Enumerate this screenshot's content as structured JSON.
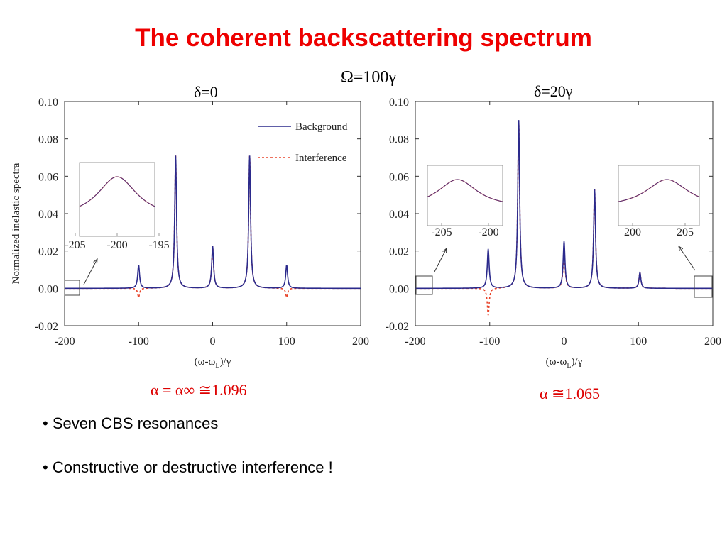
{
  "title": "The coherent backscattering spectrum",
  "omega_label": "Ω=100γ",
  "bullets": [
    "• Seven CBS resonances",
    "• Constructive or destructive interference !"
  ],
  "colors": {
    "title": "#ee0000",
    "background": "#2b2a8c",
    "interference": "#e8442a",
    "alpha": "#dd0000"
  },
  "chart_data": [
    {
      "type": "line",
      "panel_label": "δ=0",
      "alpha_label": "α = α∞ ≅1.096",
      "xlabel": "(ω-ωL)/γ",
      "ylabel": "Normalized inelastic spectra",
      "xlim": [
        -200,
        200
      ],
      "ylim": [
        -0.02,
        0.1
      ],
      "xticks": [
        -200,
        -100,
        0,
        100,
        200
      ],
      "yticks": [
        -0.02,
        0.0,
        0.02,
        0.04,
        0.06,
        0.08,
        0.1
      ],
      "ytick_labels": [
        "-0.02",
        "0.00",
        "0.02",
        "0.04",
        "0.06",
        "0.08",
        "0.10"
      ],
      "legend": [
        "Background",
        "Interference"
      ],
      "legend_position": "top-right",
      "background_peaks": [
        {
          "x": -100,
          "y": 0.0125,
          "w": 1.5
        },
        {
          "x": -50,
          "y": 0.071,
          "w": 1.5
        },
        {
          "x": 0,
          "y": 0.0225,
          "w": 1.5
        },
        {
          "x": 50,
          "y": 0.071,
          "w": 1.5
        },
        {
          "x": 100,
          "y": 0.0125,
          "w": 1.5
        }
      ],
      "interference_peaks": [
        {
          "x": -100,
          "y": -0.005,
          "w": 1.5
        },
        {
          "x": -50,
          "y": 0.071,
          "w": 1.5
        },
        {
          "x": 0,
          "y": 0.0225,
          "w": 1.5
        },
        {
          "x": 50,
          "y": 0.071,
          "w": 1.5
        },
        {
          "x": 100,
          "y": -0.005,
          "w": 1.5
        }
      ],
      "insets": [
        {
          "xticks": [
            "-205",
            "-200",
            "-195"
          ],
          "zoom_x": [
            -205,
            -195
          ],
          "peak_x": -200
        }
      ]
    },
    {
      "type": "line",
      "panel_label": "δ=20γ",
      "alpha_label": "α ≅1.065",
      "xlabel": "(ω-ωL)/γ",
      "ylabel": "",
      "xlim": [
        -200,
        200
      ],
      "ylim": [
        -0.02,
        0.1
      ],
      "xticks": [
        -200,
        -100,
        0,
        100,
        200
      ],
      "yticks": [
        -0.02,
        0.0,
        0.02,
        0.04,
        0.06,
        0.08,
        0.1
      ],
      "ytick_labels": [
        "-0.02",
        "0.00",
        "0.02",
        "0.04",
        "0.06",
        "0.08",
        "0.10"
      ],
      "background_peaks": [
        {
          "x": -102,
          "y": 0.021,
          "w": 1.5
        },
        {
          "x": -61,
          "y": 0.09,
          "w": 1.5
        },
        {
          "x": 0,
          "y": 0.025,
          "w": 1.5
        },
        {
          "x": 41,
          "y": 0.053,
          "w": 1.5
        },
        {
          "x": 102,
          "y": 0.0085,
          "w": 1.5
        }
      ],
      "interference_peaks": [
        {
          "x": -102,
          "y": -0.0145,
          "w": 1.5
        },
        {
          "x": -61,
          "y": 0.09,
          "w": 1.5
        },
        {
          "x": 0,
          "y": 0.021,
          "w": 1.5
        },
        {
          "x": 41,
          "y": 0.053,
          "w": 1.5
        },
        {
          "x": 102,
          "y": 0.0085,
          "w": 1.5
        }
      ],
      "insets": [
        {
          "xticks": [
            "-205",
            "-200"
          ],
          "zoom_x": [
            -208,
            -198
          ],
          "peak_x": -204
        },
        {
          "xticks": [
            "200",
            "205"
          ],
          "zoom_x": [
            198,
            208
          ],
          "peak_x": 204
        }
      ]
    }
  ]
}
